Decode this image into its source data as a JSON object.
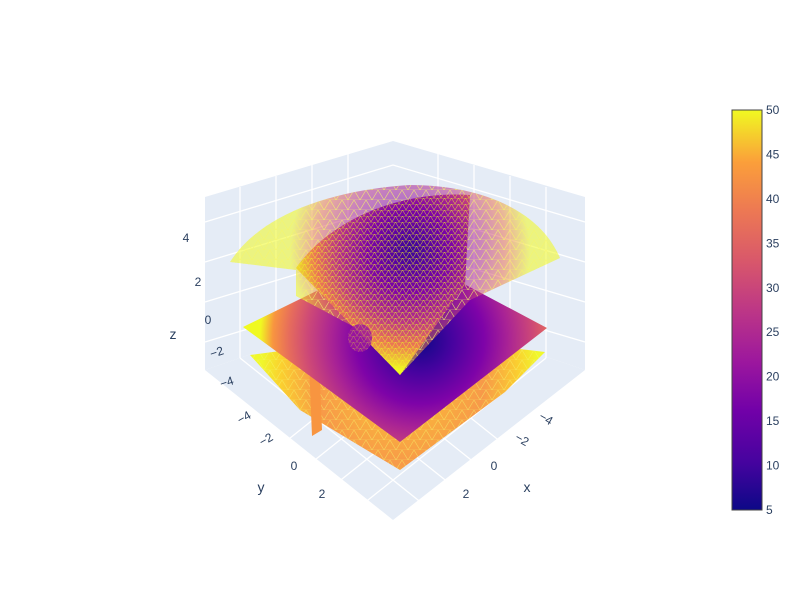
{
  "chart_data": {
    "type": "surface",
    "description_kind": "3d-scene",
    "axes": {
      "x": {
        "label": "x",
        "tick_labels": [
          "−4",
          "−2",
          "0",
          "2"
        ]
      },
      "y": {
        "label": "y",
        "tick_labels": [
          "−4",
          "−2",
          "0",
          "2"
        ]
      },
      "z": {
        "label": "z",
        "tick_labels": [
          "4",
          "2",
          "0",
          "−2",
          "−4"
        ]
      }
    },
    "colorbar": {
      "colorscale": "plasma",
      "min": 5,
      "max": 50,
      "tick_labels": [
        "50",
        "45",
        "40",
        "35",
        "30",
        "25",
        "20",
        "15",
        "10",
        "5"
      ]
    },
    "colors": {
      "scene_background": "#e5ecf6",
      "grid": "#ffffff",
      "mesh_wire": "#f5f56a",
      "text": "#2a3f5f"
    }
  }
}
